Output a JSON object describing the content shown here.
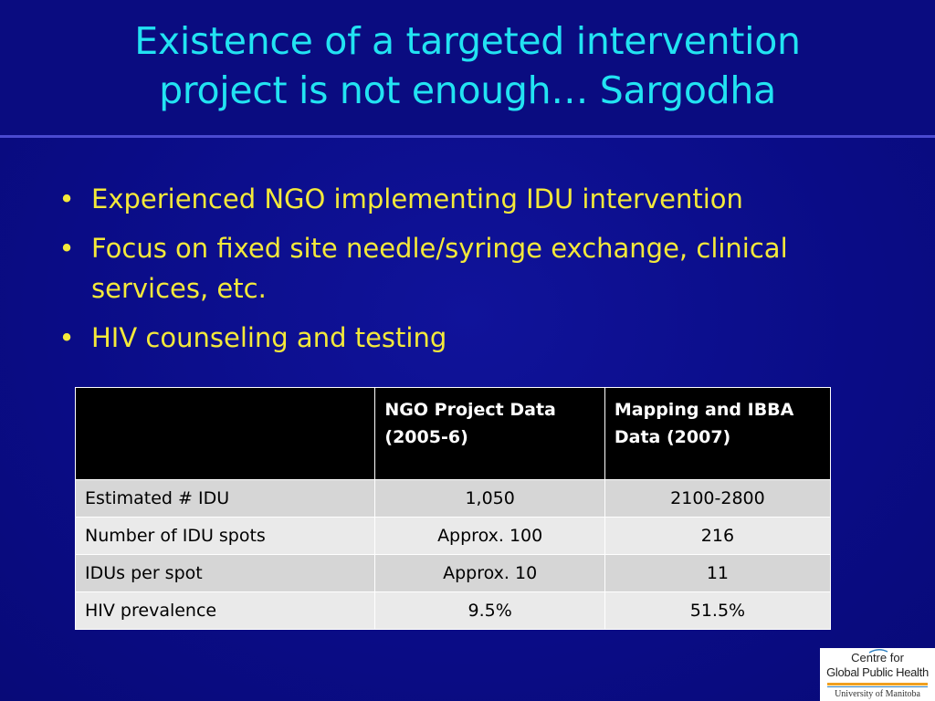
{
  "slide": {
    "title_lines": [
      "Existence of a targeted intervention",
      "project is not enough… Sargodha"
    ],
    "bullets": [
      "Experienced NGO implementing IDU intervention",
      "Focus on fixed site needle/syringe exchange, clinical services, etc.",
      "HIV counseling and testing"
    ],
    "bullet_glyph": "•",
    "colors": {
      "background": "#0c0d82",
      "title": "#22e3f2",
      "bullets": "#f4e93a"
    }
  },
  "table": {
    "headers": [
      "",
      "NGO Project Data (2005-6)",
      "Mapping and IBBA Data (2007)"
    ],
    "rows": [
      [
        "Estimated # IDU",
        "1,050",
        "2100-2800"
      ],
      [
        "Number of IDU spots",
        "Approx. 100",
        "216"
      ],
      [
        "IDUs per spot",
        "Approx. 10",
        "11"
      ],
      [
        "HIV prevalence",
        "9.5%",
        "51.5%"
      ]
    ]
  },
  "logo": {
    "line1": "Centre for",
    "line2": "Global Public Health",
    "line3": "University of Manitoba"
  }
}
